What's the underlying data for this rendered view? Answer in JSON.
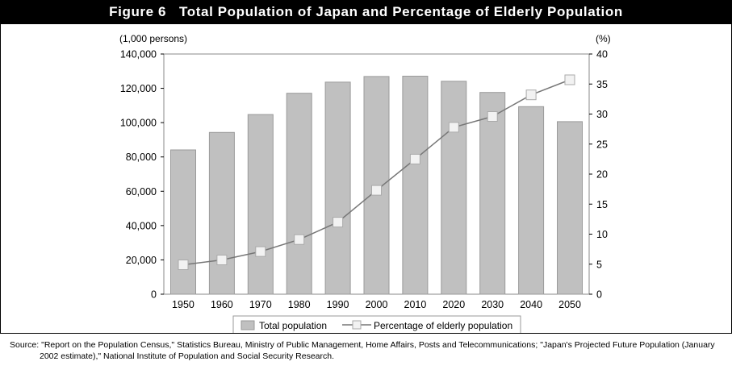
{
  "figure": {
    "title": "Figure 6   Total Population of Japan and Percentage of Elderly Population"
  },
  "chart_data": {
    "type": "bar",
    "categories": [
      "1950",
      "1960",
      "1970",
      "1980",
      "1990",
      "2000",
      "2010",
      "2020",
      "2030",
      "2040",
      "2050"
    ],
    "series": [
      {
        "name": "Total population",
        "type": "bar",
        "axis": "left",
        "values": [
          84100,
          94300,
          104700,
          117100,
          123600,
          126900,
          127100,
          124100,
          117600,
          109300,
          100600
        ],
        "color": "#c0c0c0"
      },
      {
        "name": "Percentage of elderly population",
        "type": "line",
        "axis": "right",
        "values": [
          4.9,
          5.7,
          7.1,
          9.1,
          12.0,
          17.3,
          22.5,
          27.8,
          29.6,
          33.2,
          35.7
        ],
        "color": "#777777"
      }
    ],
    "left_axis": {
      "unit_label": "(1,000 persons)",
      "range": [
        0,
        140000
      ],
      "ticks": [
        "0",
        "20,000",
        "40,000",
        "60,000",
        "80,000",
        "100,000",
        "120,000",
        "140,000"
      ]
    },
    "right_axis": {
      "unit_label": "(%)",
      "range": [
        0,
        40
      ],
      "ticks": [
        "0",
        "5",
        "10",
        "15",
        "20",
        "25",
        "30",
        "35",
        "40"
      ]
    },
    "grid": false,
    "legend": {
      "placement": "bottom-center",
      "entries": [
        "Total population",
        "Percentage of elderly population"
      ]
    }
  },
  "source": {
    "line1": "Source: \"Report on the Population Census,\" Statistics Bureau, Ministry of Public Management, Home Affairs, Posts and Telecommunications; \"Japan's Projected Future Population (January",
    "line2": "2002 estimate),\" National Institute of Population and Social Security Research."
  }
}
